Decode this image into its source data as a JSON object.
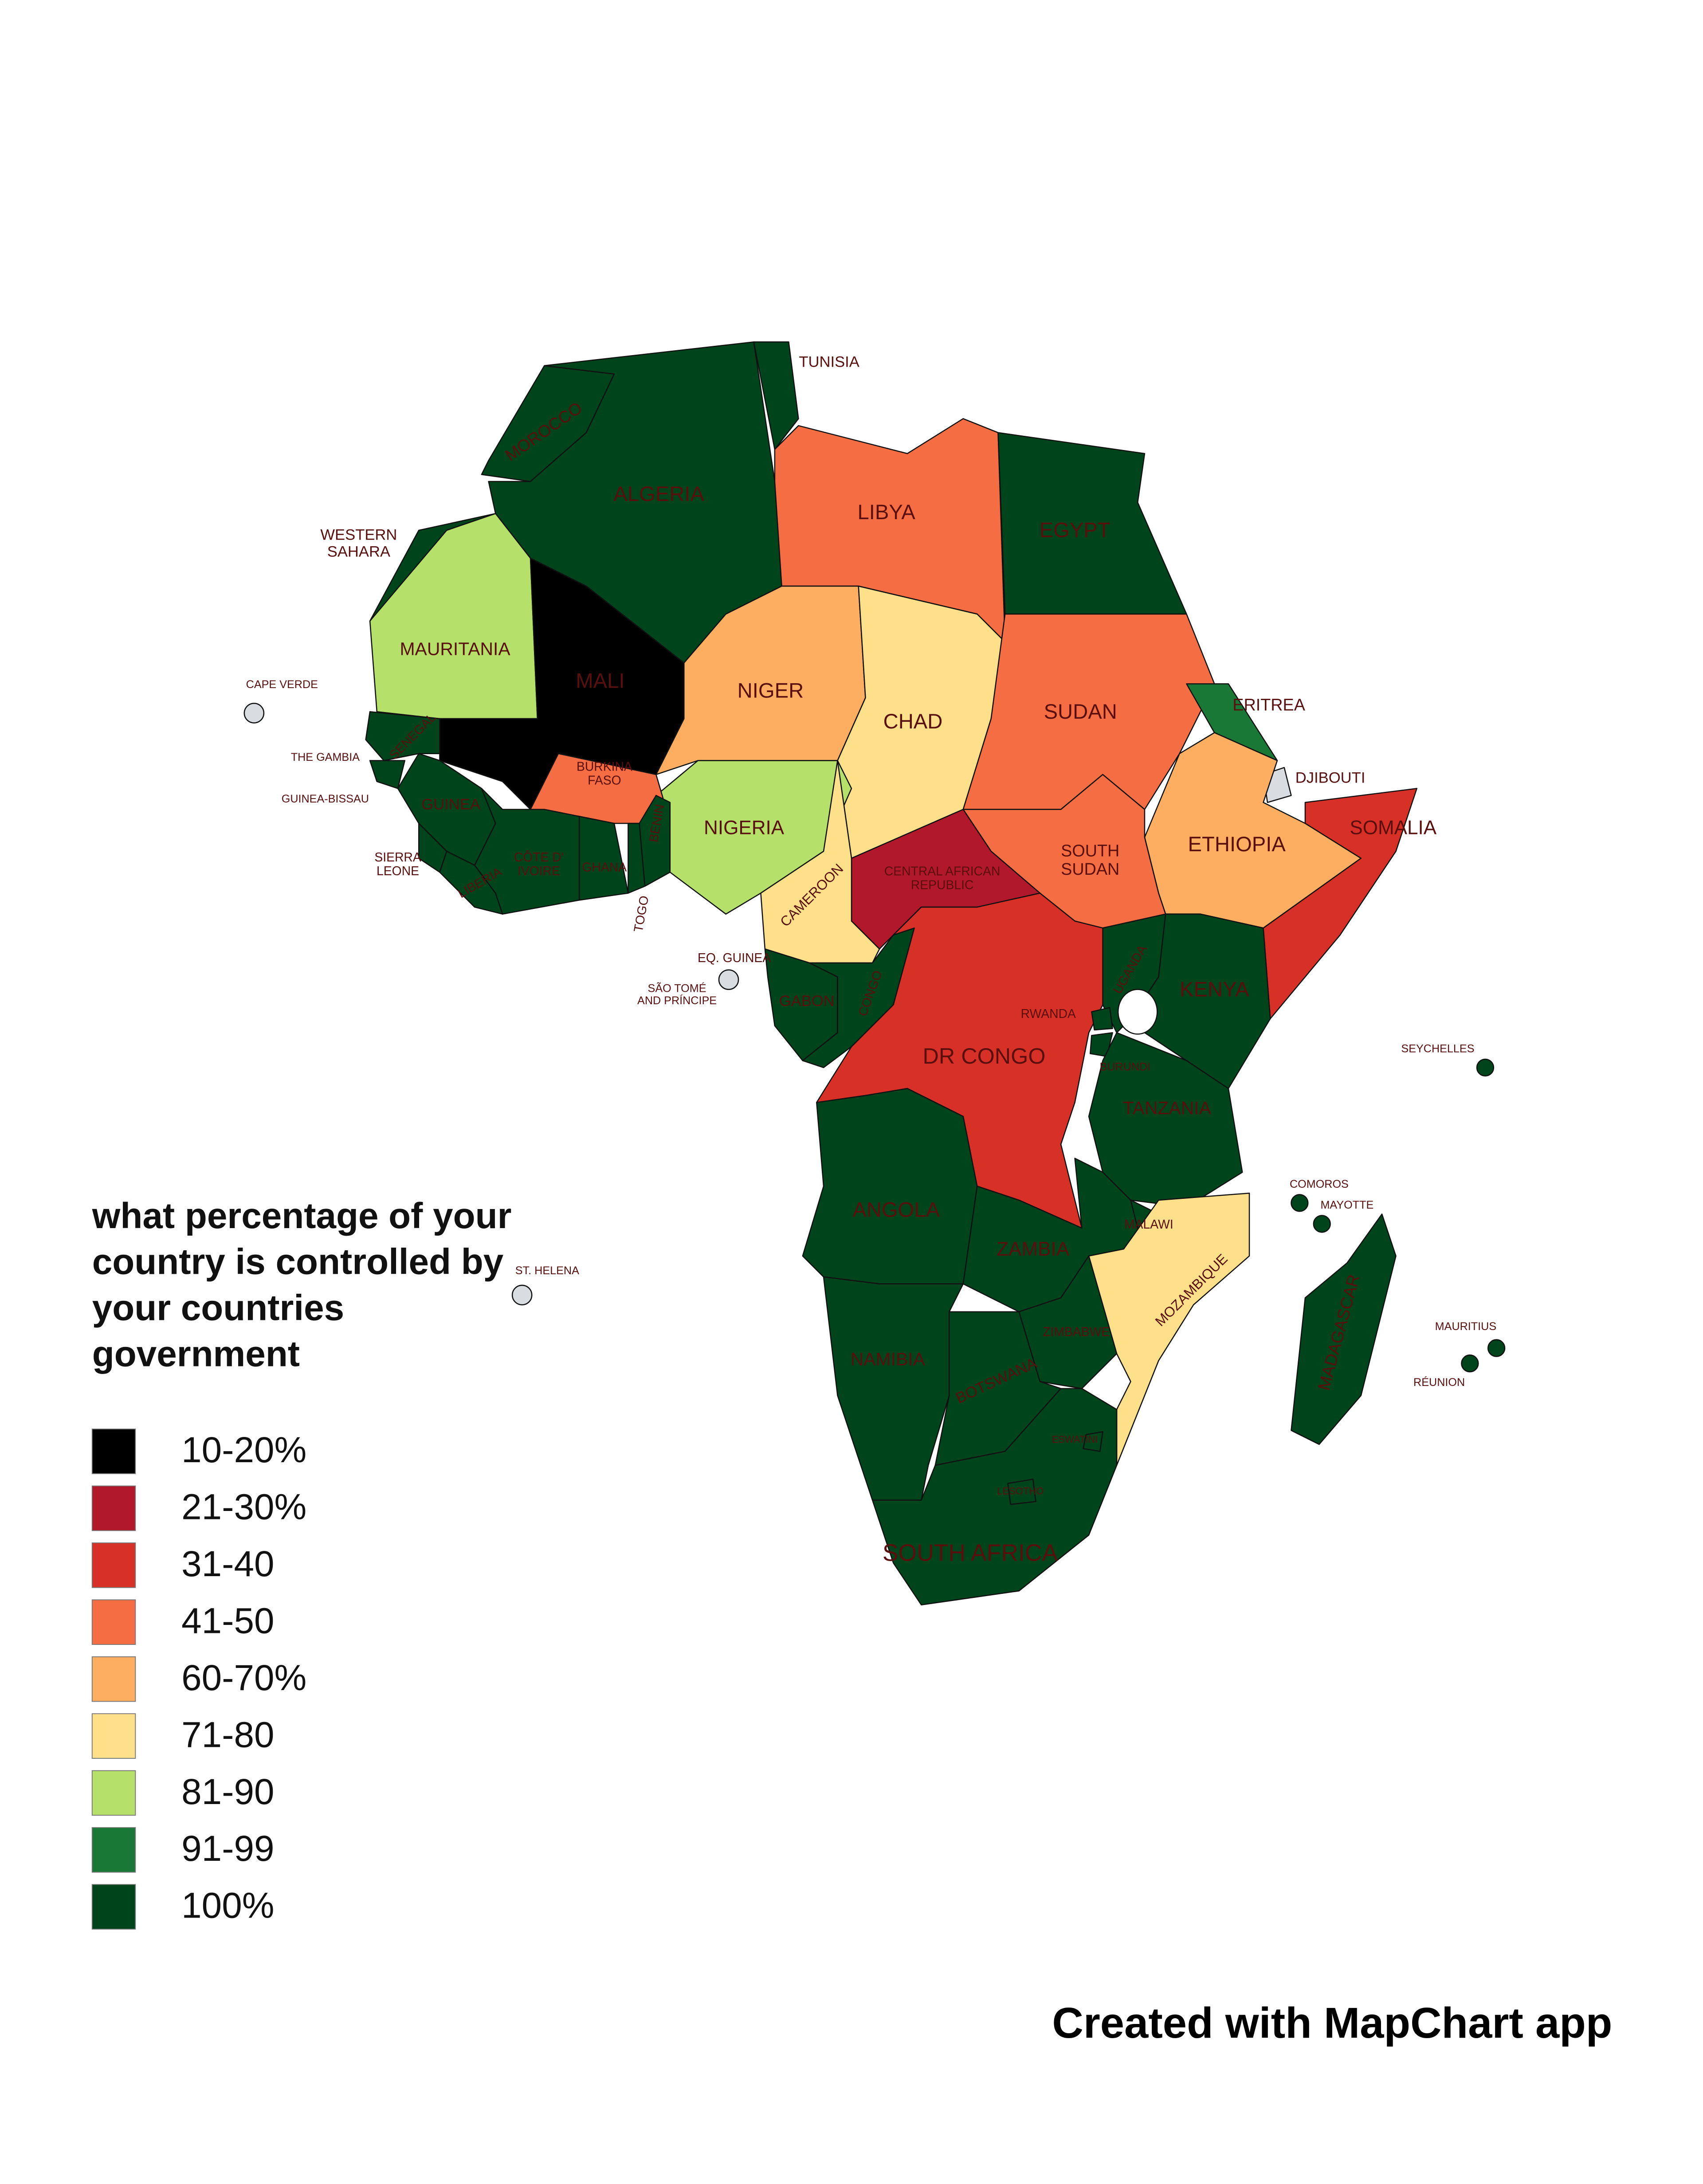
{
  "legend": {
    "title": [
      "what percentage of your",
      "country is controlled by",
      "your countries",
      "government"
    ],
    "items": [
      {
        "label": "10-20%",
        "color": "#000000"
      },
      {
        "label": "21-30%",
        "color": "#b2182b"
      },
      {
        "label": "31-40",
        "color": "#d73027"
      },
      {
        "label": "41-50",
        "color": "#f46d43"
      },
      {
        "label": "60-70%",
        "color": "#fdae61"
      },
      {
        "label": "71-80",
        "color": "#fee08b"
      },
      {
        "label": "81-90",
        "color": "#b5e06a"
      },
      {
        "label": "91-99",
        "color": "#1a7837"
      },
      {
        "label": "100%",
        "color": "#00441b"
      }
    ]
  },
  "countries": [
    {
      "label": "MOROCCO",
      "color": "#00441b"
    },
    {
      "label": [
        "WESTERN",
        "SAHARA"
      ],
      "color": "#00441b"
    },
    {
      "label": "ALGERIA",
      "color": "#00441b"
    },
    {
      "label": "TUNISIA",
      "color": "#00441b"
    },
    {
      "label": "LIBYA",
      "color": "#f46d43"
    },
    {
      "label": "EGYPT",
      "color": "#00441b"
    },
    {
      "label": "MAURITANIA",
      "color": "#b5e06a"
    },
    {
      "label": "MALI",
      "color": "#000000"
    },
    {
      "label": "NIGER",
      "color": "#fdae61"
    },
    {
      "label": "CHAD",
      "color": "#fee08b"
    },
    {
      "label": "SUDAN",
      "color": "#f46d43"
    },
    {
      "label": "ERITREA",
      "color": "#1a7837"
    },
    {
      "label": "DJIBOUTI",
      "color": "#d9dde2"
    },
    {
      "label": "ETHIOPIA",
      "color": "#fdae61"
    },
    {
      "label": "SOMALIA",
      "color": "#d73027"
    },
    {
      "label": [
        "SOUTH",
        "SUDAN"
      ],
      "color": "#f46d43"
    },
    {
      "label": [
        "CENTRAL AFRICAN",
        "REPUBLIC"
      ],
      "color": "#b2182b"
    },
    {
      "label": "NIGERIA",
      "color": "#b5e06a"
    },
    {
      "label": "CAMEROON",
      "color": "#fee08b"
    },
    {
      "label": [
        "BURKINA",
        "FASO"
      ],
      "color": "#f46d43"
    },
    {
      "label": "SENEGAL",
      "color": "#00441b"
    },
    {
      "label": "THE GAMBIA",
      "color": "#00441b"
    },
    {
      "label": "GUINEA-BISSAU",
      "color": "#00441b"
    },
    {
      "label": "GUINEA",
      "color": "#00441b"
    },
    {
      "label": [
        "SIERRA",
        "LEONE"
      ],
      "color": "#00441b"
    },
    {
      "label": "LIBERIA",
      "color": "#00441b"
    },
    {
      "label": [
        "CÔTE D'",
        "IVOIRE"
      ],
      "color": "#00441b"
    },
    {
      "label": "GHANA",
      "color": "#00441b"
    },
    {
      "label": "TOGO",
      "color": "#00441b"
    },
    {
      "label": "BENIN",
      "color": "#00441b"
    },
    {
      "label": "EQ. GUINEA",
      "color": "#d9dde2"
    },
    {
      "label": [
        "SÃO TOMÉ",
        "AND PRÍNCIPE"
      ],
      "color": "#d9dde2"
    },
    {
      "label": "GABON",
      "color": "#00441b"
    },
    {
      "label": "CONGO",
      "color": "#00441b"
    },
    {
      "label": "DR CONGO",
      "color": "#d73027"
    },
    {
      "label": "UGANDA",
      "color": "#00441b"
    },
    {
      "label": "KENYA",
      "color": "#00441b"
    },
    {
      "label": "RWANDA",
      "color": "#00441b"
    },
    {
      "label": "BURUNDI",
      "color": "#00441b"
    },
    {
      "label": "TANZANIA",
      "color": "#00441b"
    },
    {
      "label": "ANGOLA",
      "color": "#00441b"
    },
    {
      "label": "ZAMBIA",
      "color": "#00441b"
    },
    {
      "label": "MALAWI",
      "color": "#00441b"
    },
    {
      "label": "MOZAMBIQUE",
      "color": "#fee08b"
    },
    {
      "label": "ZIMBABWE",
      "color": "#00441b"
    },
    {
      "label": "NAMIBIA",
      "color": "#00441b"
    },
    {
      "label": "BOTSWANA",
      "color": "#00441b"
    },
    {
      "label": "SOUTH AFRICA",
      "color": "#00441b"
    },
    {
      "label": "ESWATINI",
      "color": "#00441b"
    },
    {
      "label": "LESOTHO",
      "color": "#00441b"
    },
    {
      "label": "MADAGASCAR",
      "color": "#00441b"
    },
    {
      "label": "CAPE VERDE",
      "color": "#d9dde2"
    },
    {
      "label": "ST. HELENA",
      "color": "#d9dde2"
    },
    {
      "label": "SEYCHELLES",
      "color": "#00441b"
    },
    {
      "label": "COMOROS",
      "color": "#00441b"
    },
    {
      "label": "MAYOTTE",
      "color": "#00441b"
    },
    {
      "label": "MAURITIUS",
      "color": "#00441b"
    },
    {
      "label": "RÉUNION",
      "color": "#00441b"
    }
  ],
  "footer": "Created with MapChart app"
}
